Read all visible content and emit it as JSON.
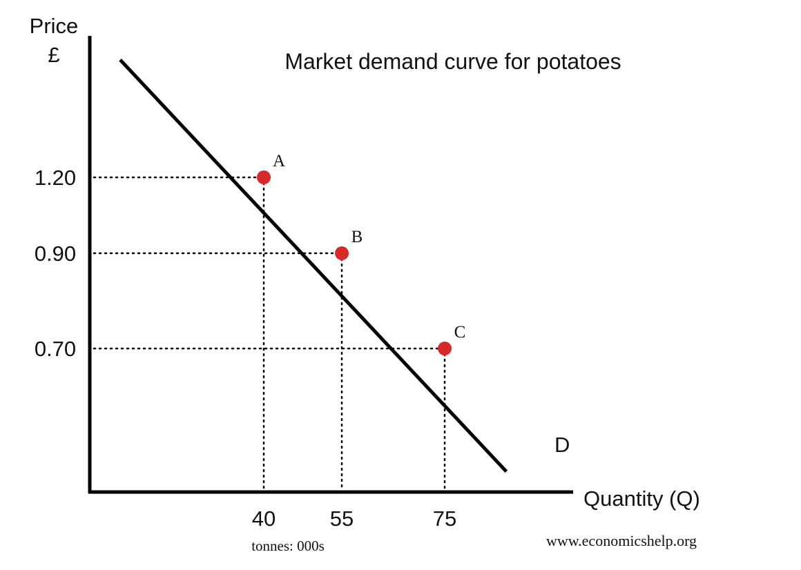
{
  "chart_data": {
    "type": "line",
    "title": "Market demand curve for potatoes",
    "ylabel": "Price",
    "ylabel_unit": "£",
    "xlabel": "Quantity (Q)",
    "x_unit_note": "tonnes: 000s",
    "curve_label": "D",
    "source": "www.economicshelp.org",
    "x_ticks": [
      "40",
      "55",
      "75"
    ],
    "y_ticks": [
      "1.20",
      "0.90",
      "0.70"
    ],
    "grid": false,
    "guide_lines": "dotted",
    "series": [
      {
        "name": "D",
        "color": "#000000",
        "x": [
          7,
          87
        ],
        "y": [
          1.73,
          0.1
        ]
      }
    ],
    "points": [
      {
        "label": "A",
        "x": 40,
        "y": 1.2,
        "color": "#d42a2a"
      },
      {
        "label": "B",
        "x": 55,
        "y": 0.9,
        "color": "#d42a2a"
      },
      {
        "label": "C",
        "x": 75,
        "y": 0.7,
        "color": "#d42a2a"
      }
    ]
  }
}
